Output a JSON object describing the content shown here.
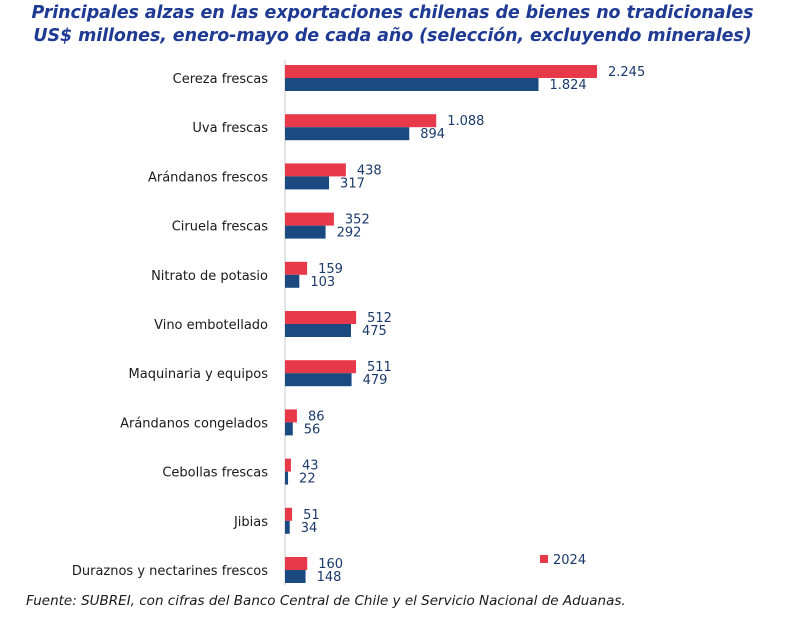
{
  "title_line1": "Principales alzas en las exportaciones chilenas de bienes no tradicionales",
  "title_line2": "US$ millones, enero-mayo de cada año (selección, excluyendo minerales)",
  "source": "Fuente: SUBREI, con cifras del Banco Central de Chile y el Servicio Nacional de Aduanas.",
  "colors": {
    "s2024": "#e8394a",
    "s2023": "#1b4a80",
    "label": "#1b3a6b",
    "category": "#1a1a1a"
  },
  "chart_data": {
    "type": "bar",
    "orientation": "horizontal",
    "categories": [
      "Cereza frescas",
      "Uva frescas",
      "Arándanos frescos",
      "Ciruela frescas",
      "Nitrato de potasio",
      "Vino embotellado",
      "Maquinaria y equipos",
      "Arándanos congelados",
      "Cebollas frescas",
      "Jibias",
      "Duraznos y nectarines frescos"
    ],
    "series": [
      {
        "name": "2024",
        "values": [
          2245,
          1088,
          438,
          352,
          159,
          512,
          511,
          86,
          43,
          51,
          160
        ],
        "labels": [
          "2.245",
          "1.088",
          "438",
          "352",
          "159",
          "512",
          "511",
          "86",
          "43",
          "51",
          "160"
        ]
      },
      {
        "values": [
          1824,
          894,
          317,
          292,
          103,
          475,
          479,
          56,
          22,
          34,
          148
        ],
        "labels": [
          "1.824",
          "894",
          "317",
          "292",
          "103",
          "475",
          "479",
          "56",
          "22",
          "34",
          "148"
        ]
      }
    ],
    "xlim": [
      0,
      2245
    ],
    "legend": "bottom-right",
    "grid": false
  }
}
